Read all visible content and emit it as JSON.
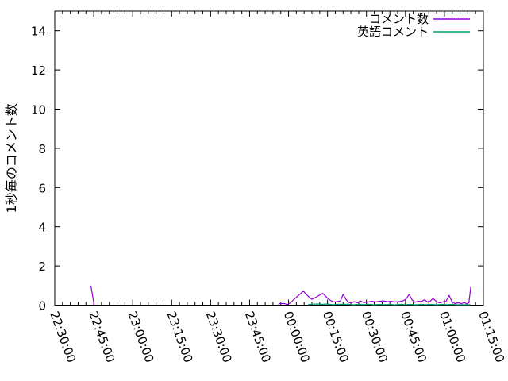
{
  "colors": {
    "background": "#ffffff",
    "axis": "#000000",
    "text": "#000000",
    "series1": "#9400d3",
    "series2": "#009e73"
  },
  "chart_data": {
    "type": "line",
    "title": "",
    "xlabel": "",
    "ylabel": "1秒毎のコメント数",
    "ylim": [
      0,
      15
    ],
    "yticks": [
      0,
      2,
      4,
      6,
      8,
      10,
      12,
      14
    ],
    "x_range_minutes": [
      0,
      165
    ],
    "x_minor_tick_every_minutes": 3,
    "grid": false,
    "legend_position": "top-right-inside",
    "x_major_ticks": [
      {
        "minute": 0,
        "label": "22:30:00"
      },
      {
        "minute": 15,
        "label": "22:45:00"
      },
      {
        "minute": 30,
        "label": "23:00:00"
      },
      {
        "minute": 45,
        "label": "23:15:00"
      },
      {
        "minute": 60,
        "label": "23:30:00"
      },
      {
        "minute": 75,
        "label": "23:45:00"
      },
      {
        "minute": 90,
        "label": "00:00:00"
      },
      {
        "minute": 105,
        "label": "00:15:00"
      },
      {
        "minute": 120,
        "label": "00:30:00"
      },
      {
        "minute": 135,
        "label": "00:45:00"
      },
      {
        "minute": 150,
        "label": "01:00:00"
      },
      {
        "minute": 165,
        "label": "01:15:00"
      }
    ],
    "series": [
      {
        "name": "コメント数",
        "color": "#9400d3",
        "segments": [
          [
            [
              13.9,
              1.0
            ],
            [
              15.2,
              0.0
            ]
          ],
          [
            [
              86,
              0
            ],
            [
              86.5,
              0.08
            ],
            [
              88.5,
              0.08
            ],
            [
              89.5,
              0.03
            ],
            [
              90.5,
              0.1
            ],
            [
              91.5,
              0.22
            ],
            [
              93,
              0.4
            ],
            [
              94.3,
              0.55
            ],
            [
              95.7,
              0.72
            ],
            [
              96.8,
              0.55
            ],
            [
              98,
              0.4
            ],
            [
              99,
              0.3
            ],
            [
              100.2,
              0.38
            ],
            [
              101.5,
              0.48
            ],
            [
              103.2,
              0.6
            ],
            [
              104.5,
              0.42
            ],
            [
              105.5,
              0.3
            ],
            [
              106.5,
              0.22
            ],
            [
              107.5,
              0.16
            ],
            [
              108.8,
              0.18
            ],
            [
              110,
              0.22
            ],
            [
              111,
              0.55
            ],
            [
              112,
              0.32
            ],
            [
              113,
              0.15
            ],
            [
              114.2,
              0.12
            ],
            [
              115.3,
              0.18
            ],
            [
              116.5,
              0.12
            ],
            [
              117.6,
              0.22
            ],
            [
              119,
              0.13
            ],
            [
              120.5,
              0.16
            ],
            [
              122,
              0.2
            ],
            [
              123.5,
              0.16
            ],
            [
              125,
              0.2
            ],
            [
              126.5,
              0.22
            ],
            [
              128,
              0.18
            ],
            [
              129.5,
              0.2
            ],
            [
              131,
              0.16
            ],
            [
              132.5,
              0.18
            ],
            [
              134,
              0.22
            ],
            [
              135.3,
              0.32
            ],
            [
              136.4,
              0.55
            ],
            [
              137.5,
              0.28
            ],
            [
              138.6,
              0.15
            ],
            [
              140,
              0.2
            ],
            [
              141.2,
              0.18
            ],
            [
              142.3,
              0.28
            ],
            [
              143.4,
              0.18
            ],
            [
              144.5,
              0.2
            ],
            [
              145.6,
              0.35
            ],
            [
              146.8,
              0.2
            ],
            [
              148,
              0.12
            ],
            [
              149.3,
              0.16
            ],
            [
              150.6,
              0.2
            ],
            [
              151.8,
              0.5
            ],
            [
              152.9,
              0.18
            ],
            [
              154,
              0.08
            ],
            [
              155.3,
              0.12
            ],
            [
              156.6,
              0.08
            ],
            [
              157.6,
              0.14
            ],
            [
              158.6,
              0.06
            ],
            [
              159.4,
              0.12
            ],
            [
              160.2,
              0.98
            ]
          ]
        ]
      },
      {
        "name": "英語コメント",
        "color": "#009e73",
        "segments": [
          [
            [
              97.5,
              0.03
            ],
            [
              99,
              0.05
            ],
            [
              101,
              0.06
            ],
            [
              103,
              0.04
            ],
            [
              105,
              0.06
            ],
            [
              107,
              0.03
            ],
            [
              109,
              0.05
            ],
            [
              111,
              0.04
            ],
            [
              113,
              0.05
            ],
            [
              115,
              0.02
            ],
            [
              117,
              0.04
            ],
            [
              119,
              0.03
            ],
            [
              121,
              0.05
            ],
            [
              123,
              0.02
            ],
            [
              125,
              0.04
            ],
            [
              127,
              0.03
            ],
            [
              129,
              0.04
            ],
            [
              131,
              0.02
            ],
            [
              133,
              0.04
            ],
            [
              135,
              0.03
            ],
            [
              137,
              0.04
            ],
            [
              139,
              0.02
            ],
            [
              141,
              0.04
            ],
            [
              143,
              0.03
            ],
            [
              145,
              0.04
            ],
            [
              147,
              0.02
            ],
            [
              149,
              0.04
            ],
            [
              151,
              0.03
            ],
            [
              153,
              0.04
            ],
            [
              155,
              0.02
            ],
            [
              157,
              0.03
            ],
            [
              159,
              0.02
            ],
            [
              160,
              0.03
            ]
          ]
        ]
      }
    ]
  }
}
